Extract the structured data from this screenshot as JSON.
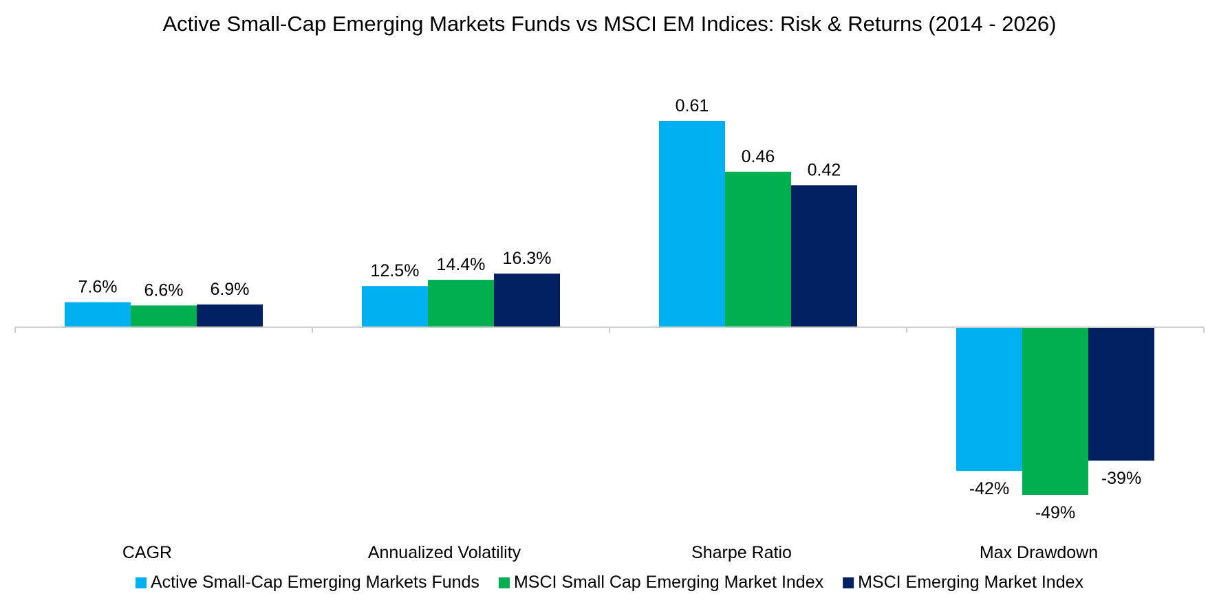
{
  "chart_data": {
    "type": "bar",
    "title": "Active Small-Cap Emerging Markets Funds vs MSCI EM Indices: Risk & Returns (2014 - 2026)",
    "categories": [
      "CAGR",
      "Annualized Volatility",
      "Sharpe Ratio",
      "Max Drawdown"
    ],
    "series": [
      {
        "name": "Active Small-Cap Emerging Markets Funds",
        "color": "#00B0F0",
        "values": [
          7.6,
          12.5,
          0.61,
          -42
        ],
        "labels": [
          "7.6%",
          "12.5%",
          "0.61",
          "-42%"
        ]
      },
      {
        "name": "MSCI Small Cap Emerging Market Index",
        "color": "#00B050",
        "values": [
          6.6,
          14.4,
          0.46,
          -49
        ],
        "labels": [
          "6.6%",
          "14.4%",
          "0.46",
          "-49%"
        ]
      },
      {
        "name": "MSCI Emerging Market Index",
        "color": "#002060",
        "values": [
          6.9,
          16.3,
          0.42,
          -39
        ],
        "labels": [
          "6.9%",
          "16.3%",
          "0.42",
          "-39%"
        ]
      }
    ],
    "legend_position": "bottom",
    "grid": false,
    "axis_line_color": "#D0D0D0"
  }
}
